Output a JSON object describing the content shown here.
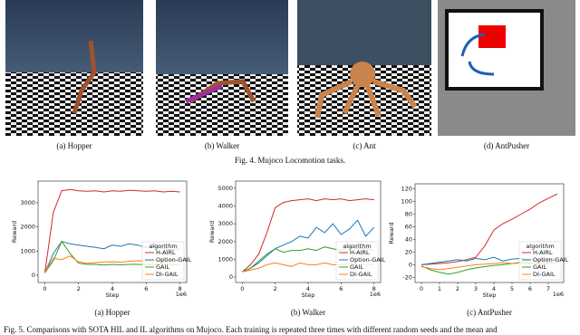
{
  "figure4": {
    "panels": [
      "(a) Hopper",
      "(b) Walker",
      "(c) Ant",
      "(d) AntPusher"
    ],
    "caption": "Fig. 4.   Mujoco Locomotion tasks."
  },
  "chart_data": [
    {
      "type": "line",
      "caption": "(a) Hopper",
      "xlabel": "Step",
      "ylabel": "Reward",
      "x_offset_label": "1e6",
      "legend_title": "algorithm",
      "legend": "lower right",
      "grid": false,
      "x": [
        0,
        0.5,
        1,
        1.5,
        2,
        2.5,
        3,
        3.5,
        4,
        4.5,
        5,
        5.5,
        6,
        6.5,
        7,
        7.5,
        8
      ],
      "xlim": [
        -0.4,
        8.4
      ],
      "ylim": [
        -300,
        3900
      ],
      "xticks": [
        0,
        2,
        4,
        6,
        8
      ],
      "yticks": [
        0,
        1000,
        2000,
        3000
      ],
      "series": [
        {
          "name": "H-AIRL",
          "color": "#d62728",
          "values": [
            100,
            2600,
            3500,
            3550,
            3500,
            3480,
            3500,
            3450,
            3500,
            3480,
            3520,
            3500,
            3480,
            3500,
            3450,
            3480,
            3450
          ]
        },
        {
          "name": "Option-GAIL",
          "color": "#1f77b4",
          "values": [
            100,
            900,
            1400,
            1300,
            1250,
            1200,
            1150,
            1100,
            1250,
            1200,
            1300,
            1250,
            1150,
            1200,
            1100,
            1050,
            1100
          ]
        },
        {
          "name": "GAIL",
          "color": "#2ca02c",
          "values": [
            100,
            600,
            1400,
            900,
            500,
            450,
            450,
            420,
            450,
            430,
            450,
            450,
            440,
            450,
            460,
            450,
            450
          ]
        },
        {
          "name": "DI-GAIL",
          "color": "#ff7f0e",
          "values": [
            100,
            700,
            650,
            800,
            550,
            500,
            520,
            550,
            560,
            540,
            580,
            600,
            580,
            600,
            620,
            600,
            620
          ]
        }
      ]
    },
    {
      "type": "line",
      "caption": "(b) Walker",
      "xlabel": "Step",
      "ylabel": "Reward",
      "x_offset_label": "1e6",
      "legend_title": "algorithm",
      "legend": "lower right",
      "grid": false,
      "x": [
        0,
        0.5,
        1,
        1.5,
        2,
        2.5,
        3,
        3.5,
        4,
        4.5,
        5,
        5.5,
        6,
        6.5,
        7,
        7.5,
        8
      ],
      "xlim": [
        -0.4,
        8.4
      ],
      "ylim": [
        -300,
        5400
      ],
      "xticks": [
        0,
        2,
        4,
        6,
        8
      ],
      "yticks": [
        0,
        1000,
        2000,
        3000,
        4000,
        5000
      ],
      "series": [
        {
          "name": "H-AIRL",
          "color": "#d62728",
          "values": [
            300,
            700,
            1300,
            2500,
            3900,
            4200,
            4300,
            4350,
            4400,
            4300,
            4400,
            4350,
            4400,
            4300,
            4350,
            4400,
            4350
          ]
        },
        {
          "name": "Option-GAIL",
          "color": "#1f77b4",
          "values": [
            300,
            500,
            800,
            1200,
            1600,
            1800,
            2000,
            2300,
            2200,
            2800,
            2500,
            3000,
            2400,
            2700,
            3200,
            2300,
            2800
          ]
        },
        {
          "name": "GAIL",
          "color": "#2ca02c",
          "values": [
            300,
            500,
            900,
            1300,
            1600,
            1400,
            1500,
            1500,
            1600,
            1500,
            1700,
            1600,
            1500,
            1700,
            1600,
            1600,
            1500
          ]
        },
        {
          "name": "DI-GAIL",
          "color": "#ff7f0e",
          "values": [
            300,
            400,
            500,
            700,
            800,
            700,
            600,
            800,
            700,
            700,
            800,
            700,
            700,
            800,
            700,
            700,
            700
          ]
        }
      ]
    },
    {
      "type": "line",
      "caption": "(c) AntPusher",
      "xlabel": "Step",
      "ylabel": "Reward",
      "x_offset_label": "1e6",
      "legend_title": "algorithm",
      "legend": "lower right",
      "grid": false,
      "x": [
        0,
        0.5,
        1,
        1.5,
        2,
        2.5,
        3,
        3.5,
        4,
        4.5,
        5,
        5.5,
        6,
        6.5,
        7,
        7.5
      ],
      "xlim": [
        -0.35,
        7.85
      ],
      "ylim": [
        -28,
        128
      ],
      "xticks": [
        0,
        1,
        2,
        3,
        4,
        5,
        6,
        7
      ],
      "yticks": [
        -20,
        0,
        20,
        40,
        60,
        80,
        100,
        120
      ],
      "series": [
        {
          "name": "H-AIRL",
          "color": "#d62728",
          "values": [
            0,
            1,
            2,
            3,
            5,
            8,
            12,
            30,
            55,
            65,
            72,
            80,
            88,
            98,
            105,
            112
          ]
        },
        {
          "name": "Option-GAIL",
          "color": "#1f77b4",
          "values": [
            0,
            2,
            4,
            6,
            8,
            6,
            10,
            8,
            12,
            6,
            9,
            10,
            8,
            7,
            10,
            8
          ]
        },
        {
          "name": "GAIL",
          "color": "#2ca02c",
          "values": [
            -2,
            -8,
            -12,
            -15,
            -12,
            -8,
            -5,
            -3,
            -1,
            0,
            2,
            3,
            2,
            3,
            2,
            4
          ]
        },
        {
          "name": "DI-GAIL",
          "color": "#ff7f0e",
          "values": [
            -3,
            -6,
            -8,
            -6,
            -4,
            -2,
            0,
            1,
            2,
            3,
            2,
            4,
            3,
            2,
            4,
            3
          ]
        }
      ]
    }
  ],
  "figure5_caption": "Fig. 5.   Comparisons with SOTA HIL and IL algorithms on Mujoco. Each training is repeated three times with different random seeds and the mean and"
}
